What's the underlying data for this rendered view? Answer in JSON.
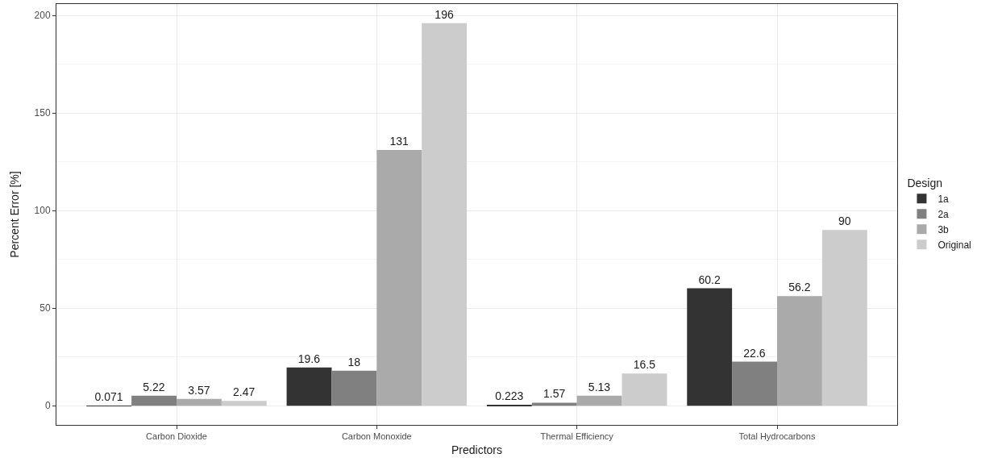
{
  "chart_data": {
    "type": "bar",
    "xlabel": "Predictors",
    "ylabel": "Percent Error [%]",
    "legend_title": "Design",
    "categories": [
      "Carbon Dioxide",
      "Carbon Monoxide",
      "Thermal Efficiency",
      "Total Hydrocarbons"
    ],
    "series": [
      {
        "name": "1a",
        "color": "#333333",
        "values": [
          0.071,
          19.6,
          0.223,
          60.2
        ]
      },
      {
        "name": "2a",
        "color": "#808080",
        "values": [
          5.22,
          18,
          1.57,
          22.6
        ]
      },
      {
        "name": "3b",
        "color": "#aaaaaa",
        "values": [
          3.57,
          131,
          5.13,
          56.2
        ]
      },
      {
        "name": "Original",
        "color": "#cccccc",
        "values": [
          2.47,
          196,
          16.5,
          90
        ]
      }
    ],
    "ylim": [
      -9.8,
      205.8
    ],
    "yticks": [
      0,
      50,
      100,
      150,
      200
    ],
    "grid": true,
    "legend": "right",
    "data_labels": true
  }
}
